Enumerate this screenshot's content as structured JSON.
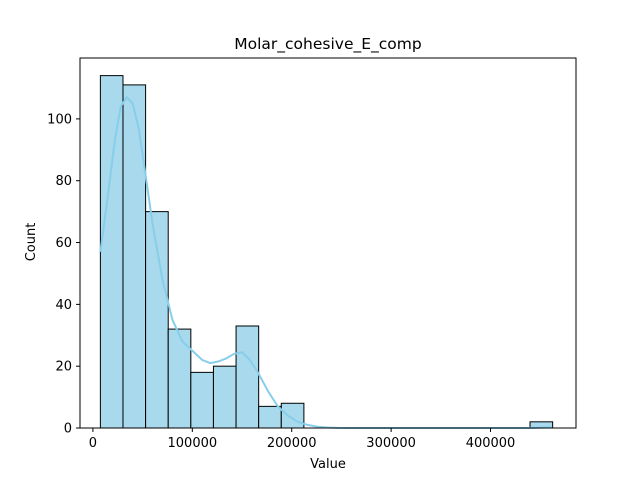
{
  "chart_data": {
    "type": "bar",
    "subtype": "histogram-with-kde",
    "title": "Molar_cohesive_E_comp",
    "xlabel": "Value",
    "ylabel": "Count",
    "xlim": [
      -13000,
      486000
    ],
    "ylim": [
      0,
      119.7
    ],
    "xticks": [
      0,
      100000,
      200000,
      300000,
      400000
    ],
    "xtick_labels": [
      "0",
      "100000",
      "200000",
      "300000",
      "400000"
    ],
    "yticks": [
      0,
      20,
      40,
      60,
      80,
      100
    ],
    "ytick_labels": [
      "0",
      "20",
      "40",
      "60",
      "80",
      "100"
    ],
    "grid": false,
    "legend": "none",
    "bins": {
      "start": 7500,
      "width": 22750,
      "counts": [
        114,
        111,
        70,
        32,
        18,
        20,
        33,
        7,
        8,
        0,
        0,
        0,
        0,
        0,
        0,
        0,
        0,
        0,
        0,
        2
      ]
    },
    "kde": {
      "x": [
        7500,
        15000,
        22000,
        28000,
        34000,
        40000,
        46000,
        52000,
        60000,
        70000,
        80000,
        90000,
        100000,
        110000,
        118000,
        126000,
        134000,
        142000,
        150000,
        158000,
        166000,
        176000,
        186000,
        196000,
        206000,
        216000,
        226000,
        236000,
        246000,
        260000,
        300000,
        350000,
        400000,
        440000,
        462000
      ],
      "y": [
        57,
        75,
        93,
        104,
        107,
        105,
        97,
        84,
        66,
        48,
        35,
        28,
        25,
        22,
        21,
        21.5,
        22.5,
        24,
        24.5,
        22,
        18,
        12,
        7,
        4,
        2,
        1,
        0.4,
        0.15,
        0.05,
        0.02,
        0,
        0,
        0,
        0,
        0.2
      ]
    },
    "colors": {
      "bar_fill": "#a8d9ec",
      "bar_edge": "#000000",
      "kde_line": "#87ceeb",
      "axes": "#000000"
    }
  }
}
